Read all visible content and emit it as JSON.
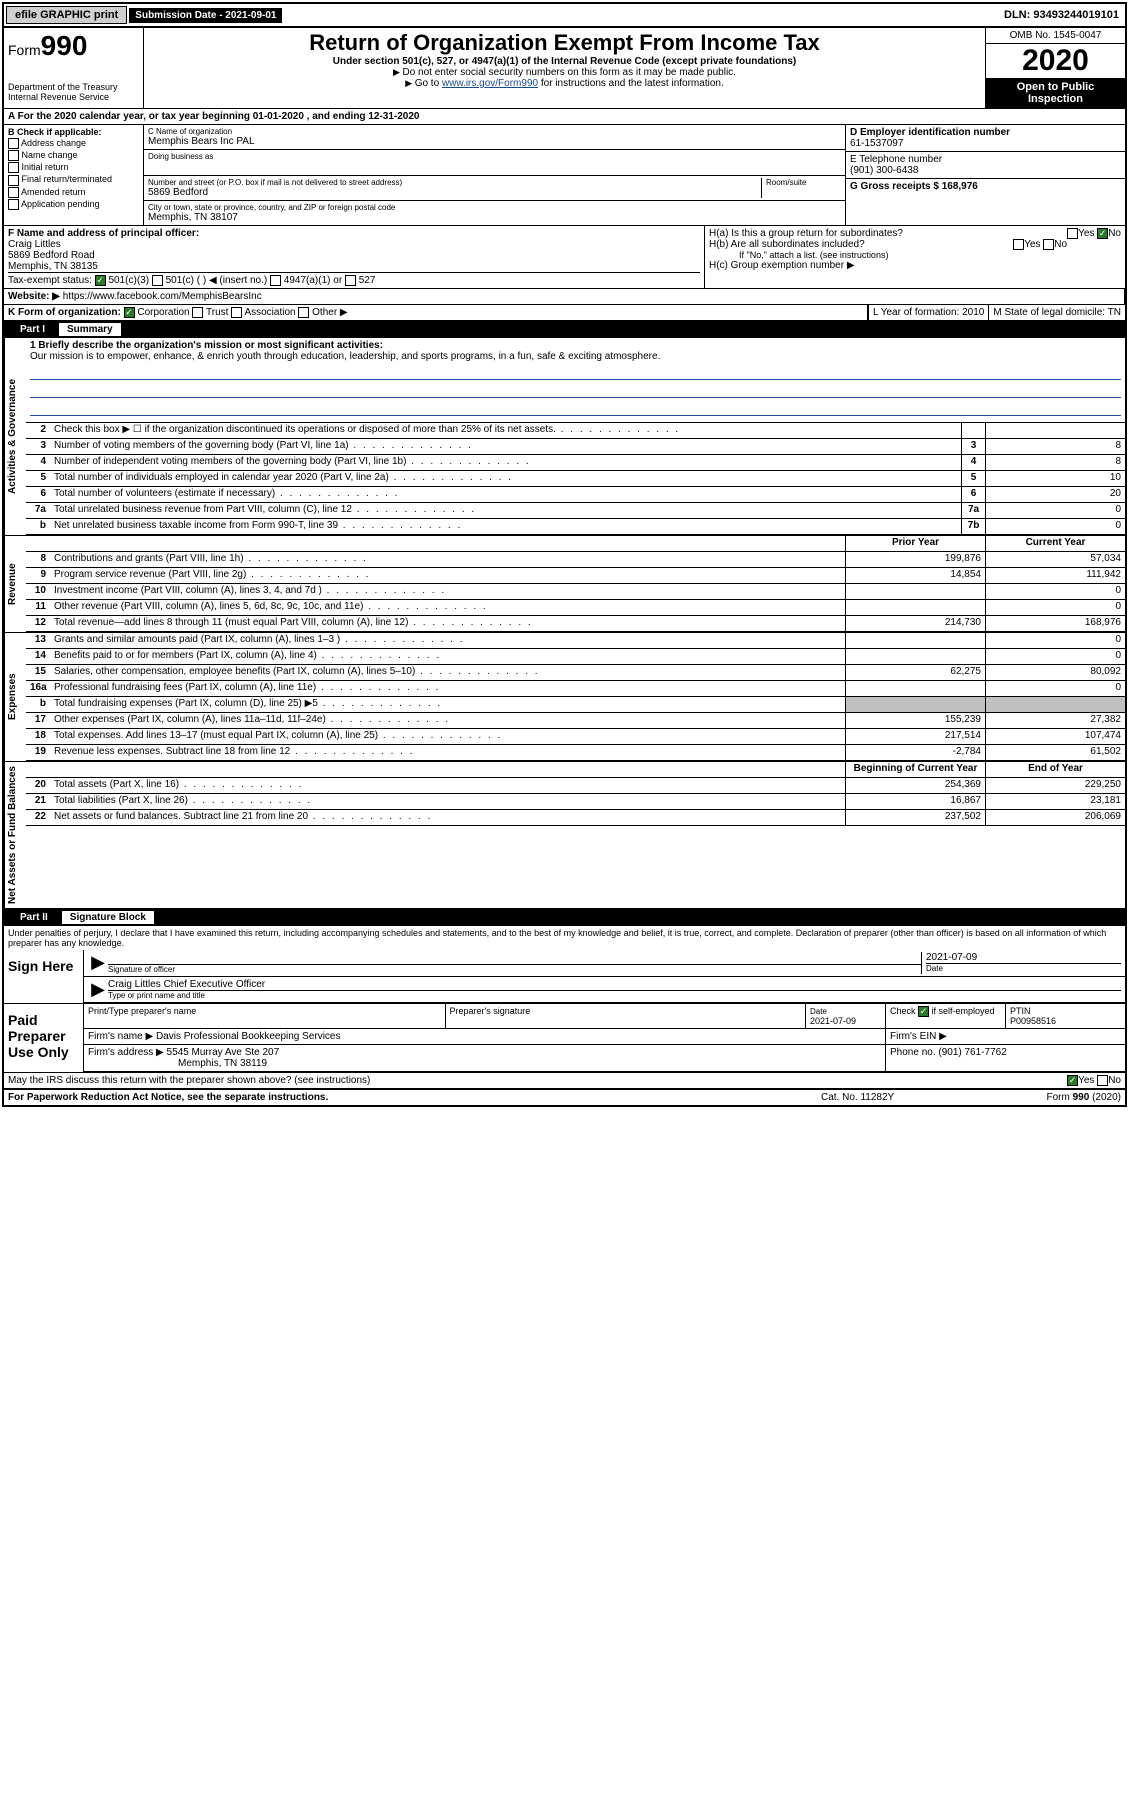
{
  "topbar": {
    "efile_btn": "efile GRAPHIC print",
    "subm_label": "Submission Date - 2021-09-01",
    "dln": "DLN: 93493244019101"
  },
  "header": {
    "form_prefix": "Form",
    "form_no": "990",
    "dept": "Department of the Treasury\nInternal Revenue Service",
    "title": "Return of Organization Exempt From Income Tax",
    "subtitle": "Under section 501(c), 527, or 4947(a)(1) of the Internal Revenue Code (except private foundations)",
    "note1": "Do not enter social security numbers on this form as it may be made public.",
    "note2_pre": "Go to ",
    "note2_link": "www.irs.gov/Form990",
    "note2_post": " for instructions and the latest information.",
    "omb": "OMB No. 1545-0047",
    "year": "2020",
    "inspect": "Open to Public Inspection"
  },
  "row_a": "A   For the 2020 calendar year, or tax year beginning 01-01-2020    , and ending 12-31-2020",
  "col_b": {
    "label": "B Check if applicable:",
    "opts": [
      "Address change",
      "Name change",
      "Initial return",
      "Final return/terminated",
      "Amended return",
      "Application pending"
    ]
  },
  "col_c": {
    "c_label": "C Name of organization",
    "c_val": "Memphis Bears Inc PAL",
    "dba_label": "Doing business as",
    "addr_label": "Number and street (or P.O. box if mail is not delivered to street address)",
    "room_label": "Room/suite",
    "addr_val": "5869 Bedford",
    "city_label": "City or town, state or province, country, and ZIP or foreign postal code",
    "city_val": "Memphis, TN  38107"
  },
  "col_d": {
    "d_label": "D Employer identification number",
    "d_val": "61-1537097",
    "e_label": "E Telephone number",
    "e_val": "(901) 300-6438",
    "g_label": "G Gross receipts $ 168,976"
  },
  "row_f": {
    "f_label": "F  Name and address of principal officer:",
    "f_name": "Craig Littles",
    "f_addr1": "5869 Bedford Road",
    "f_addr2": "Memphis, TN  38135",
    "tax_label": "Tax-exempt status:",
    "statuses": [
      "501(c)(3)",
      "501(c) (  ) ◀ (insert no.)",
      "4947(a)(1) or",
      "527"
    ]
  },
  "row_h": {
    "ha": "H(a)  Is this a group return for subordinates?",
    "hb": "H(b)  Are all subordinates included?",
    "hb_note": "If \"No,\" attach a list. (see instructions)",
    "hc": "H(c)  Group exemption number ▶",
    "yes": "Yes",
    "no": "No"
  },
  "row_j": {
    "j_label": "J",
    "j_w": "Website: ▶",
    "j_val": "https://www.facebook.com/MemphisBearsInc"
  },
  "row_k": {
    "k_label": "K Form of organization:",
    "opts": [
      "Corporation",
      "Trust",
      "Association",
      "Other ▶"
    ],
    "l_label": "L Year of formation: 2010",
    "m_label": "M State of legal domicile: TN"
  },
  "part1": {
    "num": "Part I",
    "title": "Summary"
  },
  "tabs": {
    "gov": "Activities & Governance",
    "rev": "Revenue",
    "exp": "Expenses",
    "net": "Net Assets or Fund Balances"
  },
  "mission": {
    "label": "1  Briefly describe the organization's mission or most significant activities:",
    "text": "Our mission is to empower, enhance, & enrich youth through education, leadership, and sports programs, in a fun, safe & exciting atmosphere."
  },
  "gov_lines": [
    {
      "n": "2",
      "d": "Check this box ▶ ☐  if the organization discontinued its operations or disposed of more than 25% of its net assets.",
      "box": "",
      "v": ""
    },
    {
      "n": "3",
      "d": "Number of voting members of the governing body (Part VI, line 1a)",
      "box": "3",
      "v": "8"
    },
    {
      "n": "4",
      "d": "Number of independent voting members of the governing body (Part VI, line 1b)",
      "box": "4",
      "v": "8"
    },
    {
      "n": "5",
      "d": "Total number of individuals employed in calendar year 2020 (Part V, line 2a)",
      "box": "5",
      "v": "10"
    },
    {
      "n": "6",
      "d": "Total number of volunteers (estimate if necessary)",
      "box": "6",
      "v": "20"
    },
    {
      "n": "7a",
      "d": "Total unrelated business revenue from Part VIII, column (C), line 12",
      "box": "7a",
      "v": "0"
    },
    {
      "n": "b",
      "d": "Net unrelated business taxable income from Form 990-T, line 39",
      "box": "7b",
      "v": "0"
    }
  ],
  "col_hdr": {
    "py": "Prior Year",
    "cy": "Current Year"
  },
  "rev_lines": [
    {
      "n": "8",
      "d": "Contributions and grants (Part VIII, line 1h)",
      "py": "199,876",
      "cy": "57,034"
    },
    {
      "n": "9",
      "d": "Program service revenue (Part VIII, line 2g)",
      "py": "14,854",
      "cy": "111,942"
    },
    {
      "n": "10",
      "d": "Investment income (Part VIII, column (A), lines 3, 4, and 7d )",
      "py": "",
      "cy": "0"
    },
    {
      "n": "11",
      "d": "Other revenue (Part VIII, column (A), lines 5, 6d, 8c, 9c, 10c, and 11e)",
      "py": "",
      "cy": "0"
    },
    {
      "n": "12",
      "d": "Total revenue—add lines 8 through 11 (must equal Part VIII, column (A), line 12)",
      "py": "214,730",
      "cy": "168,976"
    }
  ],
  "exp_lines": [
    {
      "n": "13",
      "d": "Grants and similar amounts paid (Part IX, column (A), lines 1–3 )",
      "py": "",
      "cy": "0"
    },
    {
      "n": "14",
      "d": "Benefits paid to or for members (Part IX, column (A), line 4)",
      "py": "",
      "cy": "0"
    },
    {
      "n": "15",
      "d": "Salaries, other compensation, employee benefits (Part IX, column (A), lines 5–10)",
      "py": "62,275",
      "cy": "80,092"
    },
    {
      "n": "16a",
      "d": "Professional fundraising fees (Part IX, column (A), line 11e)",
      "py": "",
      "cy": "0"
    },
    {
      "n": "b",
      "d": "Total fundraising expenses (Part IX, column (D), line 25) ▶5",
      "py": "GREY",
      "cy": "GREY"
    },
    {
      "n": "17",
      "d": "Other expenses (Part IX, column (A), lines 11a–11d, 11f–24e)",
      "py": "155,239",
      "cy": "27,382"
    },
    {
      "n": "18",
      "d": "Total expenses. Add lines 13–17 (must equal Part IX, column (A), line 25)",
      "py": "217,514",
      "cy": "107,474"
    },
    {
      "n": "19",
      "d": "Revenue less expenses. Subtract line 18 from line 12",
      "py": "-2,784",
      "cy": "61,502"
    }
  ],
  "net_hdr": {
    "py": "Beginning of Current Year",
    "cy": "End of Year"
  },
  "net_lines": [
    {
      "n": "20",
      "d": "Total assets (Part X, line 16)",
      "py": "254,369",
      "cy": "229,250"
    },
    {
      "n": "21",
      "d": "Total liabilities (Part X, line 26)",
      "py": "16,867",
      "cy": "23,181"
    },
    {
      "n": "22",
      "d": "Net assets or fund balances. Subtract line 21 from line 20",
      "py": "237,502",
      "cy": "206,069"
    }
  ],
  "part2": {
    "num": "Part II",
    "title": "Signature Block"
  },
  "sig": {
    "penalties": "Under penalties of perjury, I declare that I have examined this return, including accompanying schedules and statements, and to the best of my knowledge and belief, it is true, correct, and complete. Declaration of preparer (other than officer) is based on all information of which preparer has any knowledge.",
    "sign_here": "Sign Here",
    "sig_officer": "Signature of officer",
    "date": "2021-07-09",
    "date_label": "Date",
    "name_title": "Craig Littles  Chief Executive Officer",
    "type_label": "Type or print name and title",
    "paid_prep": "Paid Preparer Use Only",
    "prep_name_label": "Print/Type preparer's name",
    "prep_sig_label": "Preparer's signature",
    "prep_date": "2021-07-09",
    "prep_check": "Check ☑ if self-employed",
    "ptin_label": "PTIN",
    "ptin": "P00958516",
    "firm_name_label": "Firm's name      ▶",
    "firm_name": "Davis Professional Bookkeeping Services",
    "firm_ein_label": "Firm's EIN ▶",
    "firm_addr_label": "Firm's address ▶",
    "firm_addr1": "5545 Murray Ave Ste 207",
    "firm_addr2": "Memphis, TN  38119",
    "phone_label": "Phone no. (901) 761-7762",
    "discuss": "May the IRS discuss this return with the preparer shown above? (see instructions)",
    "yes": "Yes",
    "no": "No"
  },
  "footer": {
    "l": "For Paperwork Reduction Act Notice, see the separate instructions.",
    "m": "Cat. No. 11282Y",
    "r": "Form 990 (2020)"
  }
}
